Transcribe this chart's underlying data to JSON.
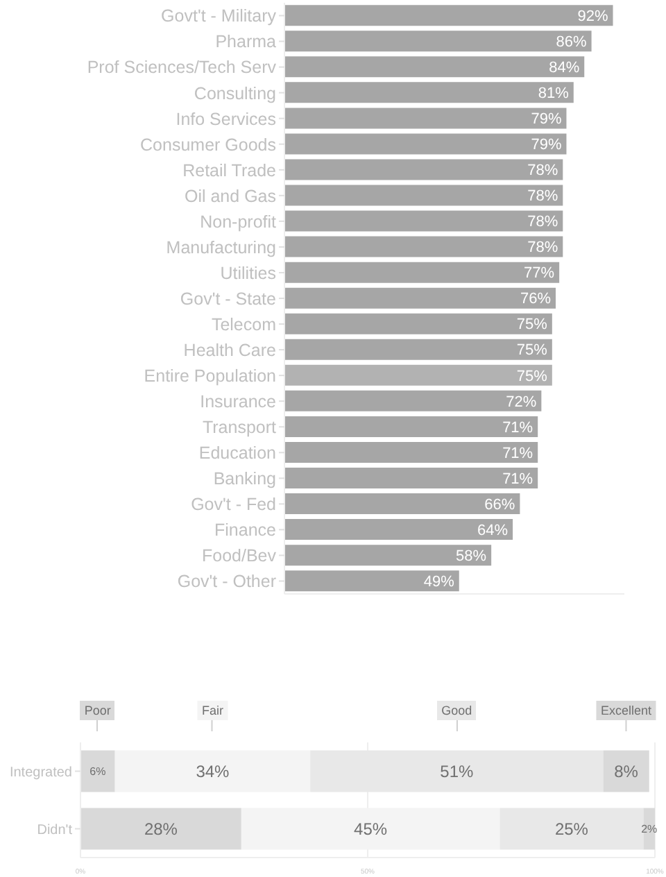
{
  "chart_data": [
    {
      "type": "bar",
      "orientation": "horizontal",
      "categories": [
        "Govt't - Military",
        "Pharma",
        "Prof Sciences/Tech Serv",
        "Consulting",
        "Info Services",
        "Consumer Goods",
        "Retail Trade",
        "Oil and Gas",
        "Non-profit",
        "Manufacturing",
        "Utilities",
        "Gov't - State",
        "Telecom",
        "Health Care",
        "Entire Population",
        "Insurance",
        "Transport",
        "Education",
        "Banking",
        "Gov't - Fed",
        "Finance",
        "Food/Bev",
        "Gov't - Other"
      ],
      "values": [
        92,
        86,
        84,
        81,
        79,
        79,
        78,
        78,
        78,
        78,
        77,
        76,
        75,
        75,
        75,
        72,
        71,
        71,
        71,
        66,
        64,
        58,
        49
      ],
      "value_labels": [
        "92%",
        "86%",
        "84%",
        "81%",
        "79%",
        "79%",
        "78%",
        "78%",
        "78%",
        "78%",
        "77%",
        "76%",
        "75%",
        "75%",
        "75%",
        "72%",
        "71%",
        "71%",
        "71%",
        "66%",
        "64%",
        "58%",
        "49%"
      ],
      "colors": [
        "#a6a6a6",
        "#a6a6a6",
        "#a6a6a6",
        "#a6a6a6",
        "#a6a6a6",
        "#a6a6a6",
        "#a6a6a6",
        "#a6a6a6",
        "#a6a6a6",
        "#a6a6a6",
        "#a6a6a6",
        "#a6a6a6",
        "#a6a6a6",
        "#a6a6a6",
        "#b2b2b2",
        "#a6a6a6",
        "#a6a6a6",
        "#a6a6a6",
        "#a6a6a6",
        "#a6a6a6",
        "#a6a6a6",
        "#a6a6a6",
        "#a6a6a6"
      ],
      "xlim": [
        0,
        95
      ],
      "tick_labels": "y"
    },
    {
      "type": "bar",
      "orientation": "horizontal",
      "stacked": true,
      "categories": [
        "Integrated",
        "Didn't"
      ],
      "series": [
        {
          "name": "Poor",
          "color": "#d9d9d9",
          "values": [
            6,
            28
          ],
          "value_labels": [
            "6%",
            "28%"
          ]
        },
        {
          "name": "Fair",
          "color": "#f4f4f4",
          "values": [
            34,
            45
          ],
          "value_labels": [
            "34%",
            "45%"
          ]
        },
        {
          "name": "Good",
          "color": "#e8e8e8",
          "values": [
            51,
            25
          ],
          "value_labels": [
            "51%",
            "25%"
          ]
        },
        {
          "name": "Excellent",
          "color": "#d9d9d9",
          "values": [
            8,
            2
          ],
          "value_labels": [
            "8%",
            "2%"
          ]
        }
      ],
      "xlim": [
        0,
        100
      ],
      "xticks": [
        {
          "value": 0,
          "label": "0%"
        },
        {
          "value": 50,
          "label": "50%"
        },
        {
          "value": 100,
          "label": "100%"
        }
      ],
      "grid": "x",
      "legend": "top"
    }
  ]
}
